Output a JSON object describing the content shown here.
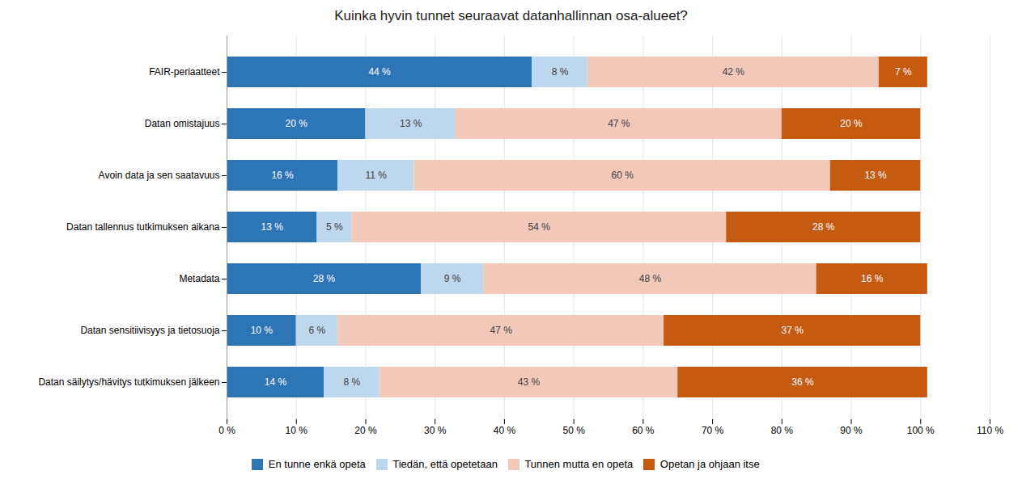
{
  "chart_data": {
    "type": "bar",
    "orientation": "horizontal",
    "stacked": true,
    "title": "Kuinka hyvin tunnet seuraavat datanhallinnan osa-alueet?",
    "categories": [
      "FAIR-periaatteet",
      "Datan omistajuus",
      "Avoin data ja sen saatavuus",
      "Datan tallennus tutkimuksen aikana",
      "Metadata",
      "Datan sensitiivisyys ja tietosuoja",
      "Datan säilytys/hävitys tutkimuksen jälkeen"
    ],
    "series": [
      {
        "name": "En tunne enkä opeta",
        "color": "#2E75B6",
        "values": [
          44,
          20,
          16,
          13,
          28,
          10,
          14
        ],
        "value_labels": [
          "44 %",
          "20 %",
          "16 %",
          "13 %",
          "28 %",
          "10 %",
          "14 %"
        ]
      },
      {
        "name": "Tiedän, että opetetaan",
        "color": "#BDD7EE",
        "values": [
          8,
          13,
          11,
          5,
          9,
          6,
          8
        ],
        "value_labels": [
          "8 %",
          "13 %",
          "11 %",
          "5 %",
          "9 %",
          "6 %",
          "8 %"
        ]
      },
      {
        "name": "Tunnen mutta en opeta",
        "color": "#F2C9B8",
        "values": [
          42,
          47,
          60,
          54,
          48,
          47,
          43
        ],
        "value_labels": [
          "42 %",
          "47 %",
          "60 %",
          "54 %",
          "48 %",
          "47 %",
          "43 %"
        ]
      },
      {
        "name": "Opetan ja ohjaan itse",
        "color": "#C55A11",
        "values": [
          7,
          20,
          13,
          28,
          16,
          37,
          36
        ],
        "value_labels": [
          "7 %",
          "20 %",
          "13 %",
          "28 %",
          "16 %",
          "37 %",
          "36 %"
        ]
      }
    ],
    "xlim": [
      0,
      110
    ],
    "xticks": [
      {
        "value": 0,
        "label": "0 %"
      },
      {
        "value": 10,
        "label": "10 %"
      },
      {
        "value": 20,
        "label": "20 %"
      },
      {
        "value": 30,
        "label": "30 %"
      },
      {
        "value": 40,
        "label": "40 %"
      },
      {
        "value": 50,
        "label": "50 %"
      },
      {
        "value": 60,
        "label": "60 %"
      },
      {
        "value": 70,
        "label": "70 %"
      },
      {
        "value": 80,
        "label": "80 %"
      },
      {
        "value": 90,
        "label": "90 %"
      },
      {
        "value": 100,
        "label": "100 %"
      },
      {
        "value": 110,
        "label": "110 %"
      }
    ],
    "grid": true,
    "data_labels": true,
    "legend": "bottom"
  }
}
